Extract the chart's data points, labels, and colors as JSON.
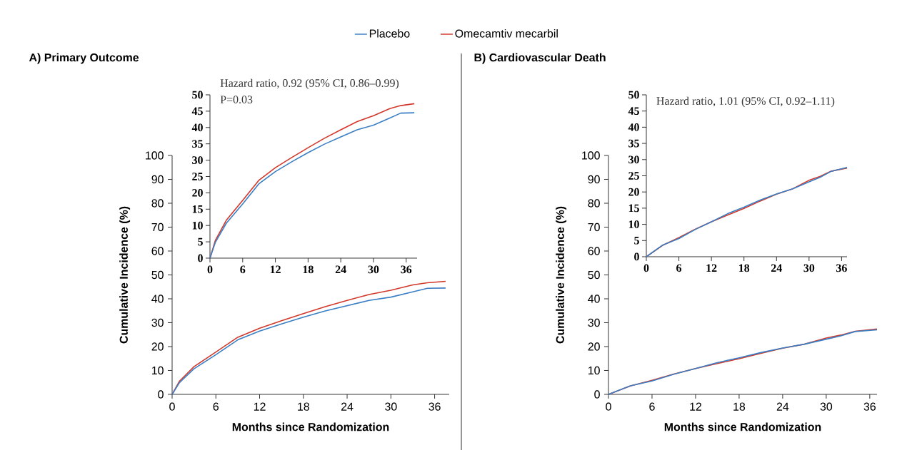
{
  "chart_data": [
    {
      "type": "line",
      "title": "A) Primary Outcome",
      "xlabel": "Months since Randomization",
      "ylabel": "Cumulative Incidence (%)",
      "legend": "top",
      "x": [
        0,
        1,
        3,
        6,
        9,
        12,
        15,
        18,
        21,
        24,
        27,
        30,
        33,
        35,
        37.5
      ],
      "series": [
        {
          "name": "Placebo",
          "color": "#3a7ec4",
          "values": [
            0,
            4.9,
            10.7,
            16.6,
            22.8,
            26.5,
            29.5,
            32.3,
            34.9,
            37.1,
            39.3,
            40.7,
            42.9,
            44.4,
            44.5
          ]
        },
        {
          "name": "Omecamtiv mecarbil",
          "color": "#d2372a",
          "values": [
            0,
            5.5,
            11.6,
            17.7,
            23.9,
            27.7,
            30.8,
            33.8,
            36.7,
            39.3,
            41.8,
            43.6,
            45.8,
            46.7,
            47.3
          ]
        }
      ],
      "xlim": [
        0,
        38
      ],
      "ylim": [
        0,
        100
      ],
      "xticks": [
        0,
        6,
        12,
        18,
        24,
        30,
        36
      ],
      "yticks": [
        0,
        10,
        20,
        30,
        40,
        50,
        60,
        70,
        80,
        90,
        100
      ]
    },
    {
      "type": "line",
      "annotations": [
        "Hazard ratio, 0.92 (95% CI, 0.86–0.99)",
        "P=0.03"
      ],
      "x": [
        0,
        1,
        3,
        6,
        9,
        12,
        15,
        18,
        21,
        24,
        27,
        30,
        33,
        35,
        37.5
      ],
      "series": [
        {
          "color": "#3a7ec4",
          "values": [
            0,
            4.9,
            10.7,
            16.6,
            22.8,
            26.5,
            29.5,
            32.3,
            34.9,
            37.1,
            39.3,
            40.7,
            42.9,
            44.4,
            44.5
          ]
        },
        {
          "color": "#d2372a",
          "values": [
            0,
            5.5,
            11.6,
            17.7,
            23.9,
            27.7,
            30.8,
            33.8,
            36.7,
            39.3,
            41.8,
            43.6,
            45.8,
            46.7,
            47.3
          ]
        }
      ],
      "xlim": [
        0,
        38
      ],
      "ylim": [
        0,
        50
      ],
      "xticks": [
        0,
        6,
        12,
        18,
        24,
        30,
        36
      ],
      "yticks": [
        0,
        5,
        10,
        15,
        20,
        25,
        30,
        35,
        40,
        45,
        50
      ]
    },
    {
      "type": "line",
      "title": "B) Cardiovascular Death",
      "xlabel": "Months since Randomization",
      "ylabel": "Cumulative Incidence (%)",
      "x": [
        0,
        3,
        6,
        9,
        12,
        15,
        18,
        21,
        24,
        27,
        30,
        32,
        34,
        37
      ],
      "series": [
        {
          "color": "#3a7ec4",
          "values": [
            0,
            3.6,
            5.6,
            8.4,
            10.8,
            13.3,
            15.3,
            17.5,
            19.4,
            21.0,
            23.1,
            24.5,
            26.3,
            27.0
          ]
        },
        {
          "color": "#d2372a",
          "values": [
            0,
            3.5,
            5.9,
            8.5,
            10.8,
            12.9,
            14.9,
            17.2,
            19.3,
            21.0,
            23.6,
            24.8,
            26.4,
            27.4
          ]
        }
      ],
      "xlim": [
        0,
        37
      ],
      "ylim": [
        0,
        100
      ],
      "xticks": [
        0,
        6,
        12,
        18,
        24,
        30,
        36
      ],
      "yticks": [
        0,
        10,
        20,
        30,
        40,
        50,
        60,
        70,
        80,
        90,
        100
      ]
    },
    {
      "type": "line",
      "annotations": [
        "Hazard ratio, 1.01 (95% CI, 0.92–1.11)"
      ],
      "x": [
        0,
        3,
        6,
        9,
        12,
        15,
        18,
        21,
        24,
        27,
        30,
        32,
        34,
        37
      ],
      "series": [
        {
          "color": "#3a7ec4",
          "values": [
            0,
            3.6,
            5.6,
            8.4,
            10.8,
            13.3,
            15.3,
            17.5,
            19.4,
            21.0,
            23.1,
            24.5,
            26.3,
            27.6
          ]
        },
        {
          "color": "#d2372a",
          "values": [
            0,
            3.5,
            5.9,
            8.5,
            10.8,
            12.9,
            14.9,
            17.2,
            19.3,
            21.0,
            23.6,
            24.8,
            26.4,
            27.4
          ]
        }
      ],
      "xlim": [
        0,
        37
      ],
      "ylim": [
        0,
        50
      ],
      "xticks": [
        0,
        6,
        12,
        18,
        24,
        30,
        36
      ],
      "yticks": [
        0,
        5,
        10,
        15,
        20,
        25,
        30,
        35,
        40,
        45,
        50
      ]
    }
  ]
}
